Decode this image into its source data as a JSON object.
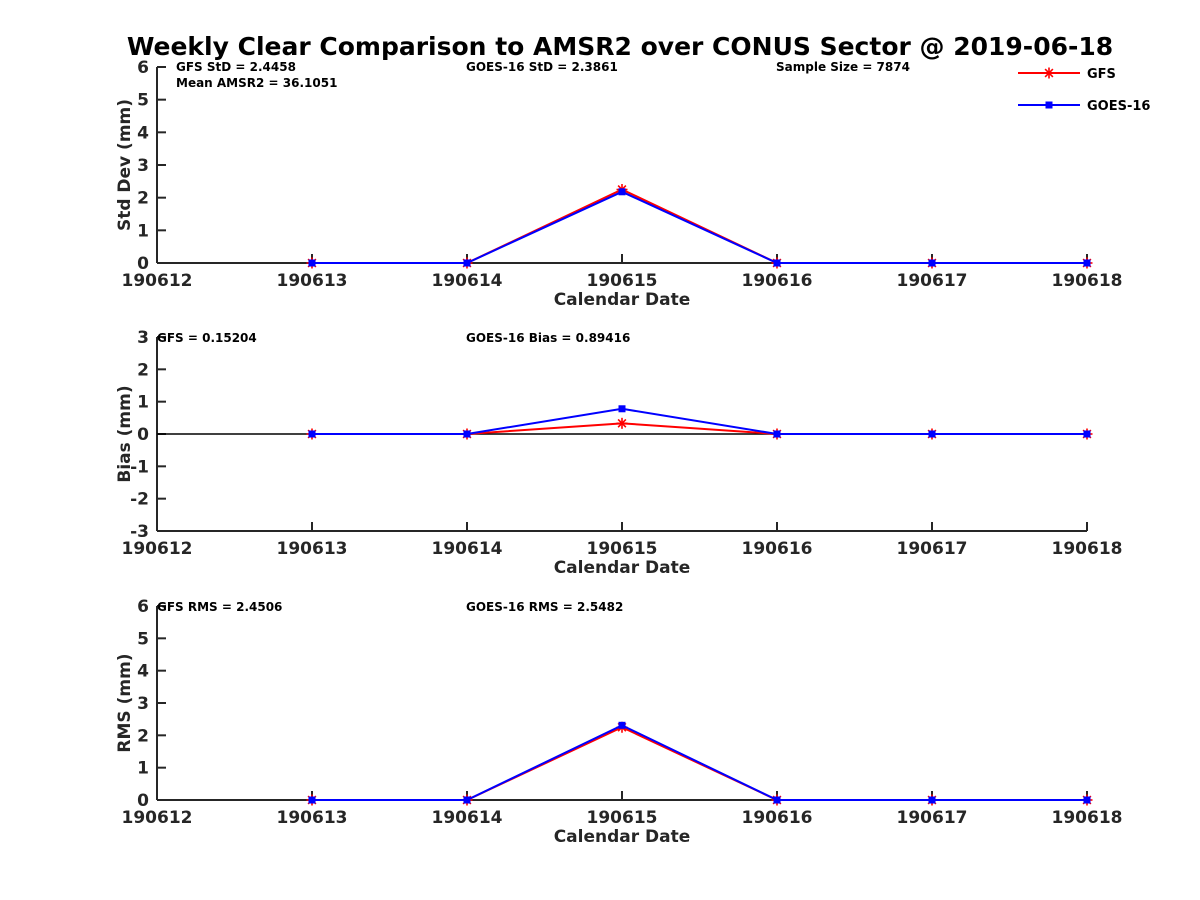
{
  "chart_title": "Weekly Clear Comparison to AMSR2 over CONUS Sector @ 2019-06-18",
  "colors": {
    "GFS": "#ff0000",
    "GOES-16": "#0000ff",
    "zero_line": "#000000",
    "axis": "#262626"
  },
  "legend": {
    "placement": "top-right",
    "entries": [
      {
        "label": "GFS",
        "marker": "asterisk",
        "color": "#ff0000"
      },
      {
        "label": "GOES-16",
        "marker": "square",
        "color": "#0000ff"
      }
    ]
  },
  "chart_data": [
    {
      "type": "line",
      "title": "",
      "xlabel": "Calendar Date",
      "ylabel": "Std Dev (mm)",
      "categories": [
        "190612",
        "190613",
        "190614",
        "190615",
        "190616",
        "190617",
        "190618"
      ],
      "ylim": [
        0,
        6
      ],
      "yticks": [
        "0",
        "1",
        "2",
        "3",
        "4",
        "5",
        "6"
      ],
      "zero_line": false,
      "annotations": [
        "GFS StD = 2.4458",
        "Mean AMSR2 = 36.1051",
        "GOES-16 StD = 2.3861",
        "Sample Size = 7874"
      ],
      "series": [
        {
          "name": "GFS",
          "values": [
            null,
            0,
            0,
            2.25,
            0,
            0,
            0
          ]
        },
        {
          "name": "GOES-16",
          "values": [
            null,
            0,
            0,
            2.18,
            0,
            0,
            0
          ]
        }
      ]
    },
    {
      "type": "line",
      "title": "",
      "xlabel": "Calendar Date",
      "ylabel": "Bias (mm)",
      "categories": [
        "190612",
        "190613",
        "190614",
        "190615",
        "190616",
        "190617",
        "190618"
      ],
      "ylim": [
        -3,
        3
      ],
      "yticks": [
        "-3",
        "-2",
        "-1",
        "0",
        "1",
        "2",
        "3"
      ],
      "zero_line": true,
      "annotations": [
        "GFS = 0.15204",
        "GOES-16 Bias  = 0.89416"
      ],
      "series": [
        {
          "name": "GFS",
          "values": [
            null,
            0,
            0,
            0.33,
            0,
            0,
            0
          ]
        },
        {
          "name": "GOES-16",
          "values": [
            null,
            0,
            0,
            0.78,
            0,
            0,
            0
          ]
        }
      ]
    },
    {
      "type": "line",
      "title": "",
      "xlabel": "Calendar Date",
      "ylabel": "RMS (mm)",
      "categories": [
        "190612",
        "190613",
        "190614",
        "190615",
        "190616",
        "190617",
        "190618"
      ],
      "ylim": [
        0,
        6
      ],
      "yticks": [
        "0",
        "1",
        "2",
        "3",
        "4",
        "5",
        "6"
      ],
      "zero_line": false,
      "annotations": [
        "GFS RMS = 2.4506",
        "GOES-16 RMS = 2.5482"
      ],
      "series": [
        {
          "name": "GFS",
          "values": [
            null,
            0,
            0,
            2.25,
            0,
            0,
            0
          ]
        },
        {
          "name": "GOES-16",
          "values": [
            null,
            0,
            0,
            2.31,
            0,
            0,
            0
          ]
        }
      ]
    }
  ]
}
